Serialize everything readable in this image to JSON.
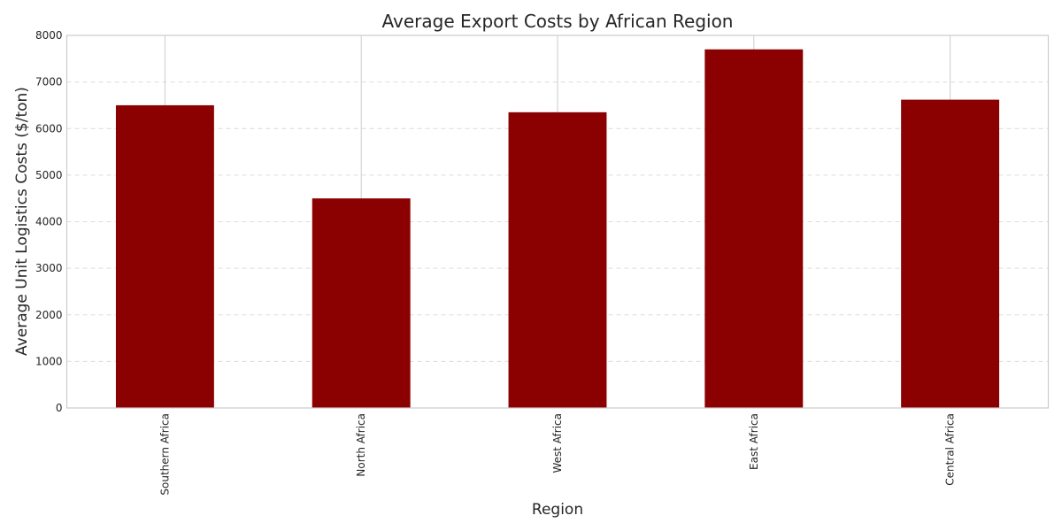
{
  "chart_data": {
    "type": "bar",
    "title": "Average Export Costs by African Region",
    "xlabel": "Region",
    "ylabel": "Average Unit Logistics Costs ($/ton)",
    "categories": [
      "Southern Africa",
      "North Africa",
      "West Africa",
      "East Africa",
      "Central Africa"
    ],
    "values": [
      6500,
      4500,
      6350,
      7700,
      6620
    ],
    "ylim": [
      0,
      8000
    ],
    "yticks": [
      0,
      1000,
      2000,
      3000,
      4000,
      5000,
      6000,
      7000,
      8000
    ],
    "grid": true,
    "legend": false,
    "colors": {
      "bar": "#8b0000"
    }
  }
}
